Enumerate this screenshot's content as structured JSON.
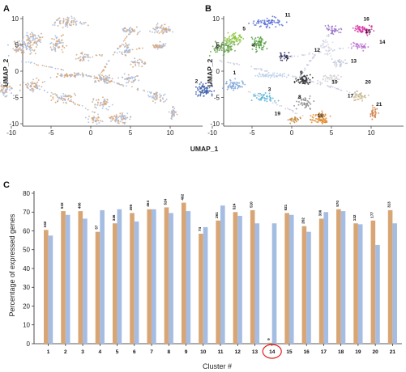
{
  "panels": {
    "a": "A",
    "b": "B",
    "c": "C"
  },
  "umap": {
    "xlabel": "UMAP_1",
    "ylabel": "UMAP_2",
    "xticks": [
      "-10",
      "-5",
      "0",
      "5",
      "10"
    ],
    "yticks": [
      "10",
      "5",
      "0",
      "-5",
      "-10"
    ],
    "cluster_labels": [
      "1",
      "2",
      "3",
      "4",
      "5",
      "6",
      "7",
      "8",
      "9",
      "10",
      "11",
      "12",
      "13",
      "14",
      "15",
      "16",
      "17",
      "18",
      "19",
      "20",
      "21"
    ]
  },
  "colors": {
    "tan": "#d8a574",
    "blue": "#a5bce3",
    "highlight": "#e02020"
  },
  "chart_data": {
    "type": "bar",
    "xlabel": "Cluster #",
    "ylabel": "Percentage of expressed genes",
    "ylim": [
      0,
      80
    ],
    "yticks": [
      "0",
      "10",
      "20",
      "30",
      "40",
      "50",
      "60",
      "70",
      "80"
    ],
    "categories": [
      "1",
      "2",
      "3",
      "4",
      "5",
      "6",
      "7",
      "8",
      "9",
      "10",
      "11",
      "12",
      "13",
      "14",
      "15",
      "16",
      "17",
      "18",
      "19",
      "20",
      "21"
    ],
    "highlight_category": "14",
    "series": [
      {
        "values": [
          60.5,
          70.5,
          70.5,
          59.5,
          64,
          69.5,
          71.5,
          72.5,
          75,
          58.5,
          65.5,
          70,
          71,
          0.5,
          69.5,
          62.5,
          66.5,
          71.5,
          64,
          65.5,
          71
        ],
        "labels": [
          "342",
          "532",
          "406",
          "57",
          "346",
          "395",
          "464",
          "524",
          "492",
          "74",
          "261",
          "524",
          "510",
          "9",
          "921",
          "202",
          "336",
          "570",
          "132",
          "177",
          "313"
        ]
      },
      {
        "values": [
          57.5,
          68.5,
          66.5,
          71,
          71.5,
          65,
          71.5,
          69.5,
          70.5,
          62,
          73.5,
          68,
          64,
          64,
          68.5,
          59.5,
          70,
          70.5,
          63.5,
          52.5,
          64
        ]
      }
    ]
  }
}
